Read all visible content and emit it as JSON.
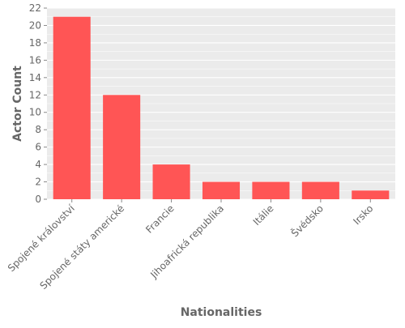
{
  "colors": {
    "bar": "#ff5555",
    "plot_background": "#ebebeb",
    "grid": "#ffffff",
    "text": "#666666"
  },
  "chart_data": {
    "type": "bar",
    "categories": [
      "Spojené království",
      "Spojené státy americké",
      "Francie",
      "Jihoafrická republika",
      "Itálie",
      "Švédsko",
      "Irsko"
    ],
    "values": [
      21,
      12,
      4,
      2,
      2,
      2,
      1
    ],
    "xlabel": "Nationalities",
    "ylabel": "Actor Count",
    "ylim": [
      0,
      22
    ],
    "yticks": [
      0,
      2,
      4,
      6,
      8,
      10,
      12,
      14,
      16,
      18,
      20,
      22
    ],
    "grid": true,
    "legend": "none"
  }
}
